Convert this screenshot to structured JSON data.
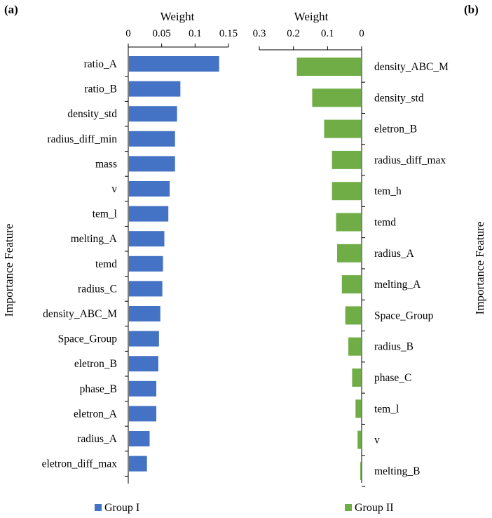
{
  "panels": {
    "a": "(a)",
    "b": "(b)"
  },
  "legend": {
    "group1": "Group I",
    "group2": "Group II"
  },
  "colors": {
    "group1": "#4472C4",
    "group2": "#70AD47",
    "axis": "#000000"
  },
  "chart_data": [
    {
      "type": "bar",
      "orientation": "horizontal",
      "panel_label": "(a)",
      "title": "Weight",
      "ylabel": "Importance Feature",
      "xlim": [
        0,
        0.15
      ],
      "xticks": [
        "0",
        "0.05",
        "0.1",
        "0.15"
      ],
      "xdirection": "left-to-right",
      "series": [
        {
          "name": "Group I",
          "color": "#4472C4",
          "values": [
            0.136,
            0.078,
            0.073,
            0.07,
            0.07,
            0.062,
            0.06,
            0.054,
            0.052,
            0.051,
            0.048,
            0.046,
            0.045,
            0.042,
            0.042,
            0.032,
            0.028
          ]
        }
      ],
      "categories": [
        "ratio_A",
        "ratio_B",
        "density_std",
        "radius_diff_min",
        "mass",
        "v",
        "tem_l",
        "melting_A",
        "temd",
        "radius_C",
        "density_ABC_M",
        "Space_Group",
        "eletron_B",
        "phase_B",
        "eletron_A",
        "radius_A",
        "eletron_diff_max"
      ]
    },
    {
      "type": "bar",
      "orientation": "horizontal",
      "panel_label": "(b)",
      "title": "Weight",
      "ylabel": "Importance Feature",
      "xlim": [
        0,
        0.3
      ],
      "xticks": [
        "0.3",
        "0.2",
        "0.1",
        "0"
      ],
      "xdirection": "right-to-left",
      "series": [
        {
          "name": "Group II",
          "color": "#70AD47",
          "values": [
            0.19,
            0.145,
            0.11,
            0.087,
            0.087,
            0.075,
            0.072,
            0.058,
            0.048,
            0.039,
            0.028,
            0.018,
            0.012,
            0.004
          ]
        }
      ],
      "categories": [
        "density_ABC_M",
        "density_std",
        "eletron_B",
        "radius_diff_max",
        "tem_h",
        "temd",
        "radius_A",
        "melting_A",
        "Space_Group",
        "radius_B",
        "phase_C",
        "tem_l",
        "v",
        "melting_B"
      ]
    }
  ]
}
